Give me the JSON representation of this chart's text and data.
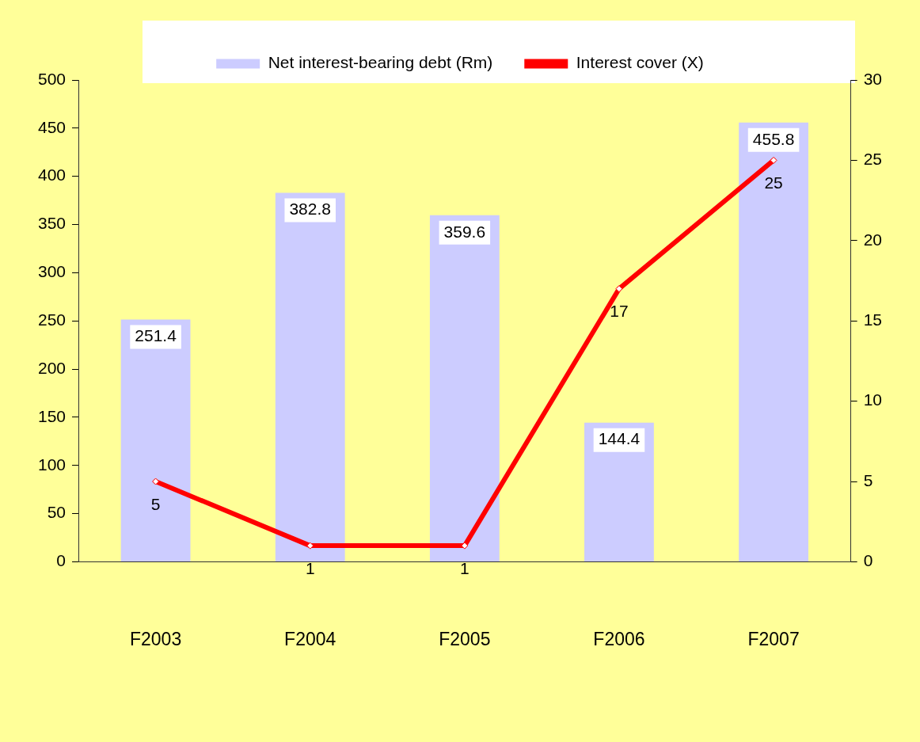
{
  "chart_data": {
    "type": "bar",
    "categories": [
      "F2003",
      "F2004",
      "F2005",
      "F2006",
      "F2007"
    ],
    "series": [
      {
        "name": "Net interest-bearing debt (Rm)",
        "color": "#ccccff",
        "values": [
          251.4,
          382.8,
          359.6,
          144.4,
          455.8
        ]
      },
      {
        "name": "Interest cover (X)",
        "type": "line",
        "axis": "y2",
        "color": "#ff0000",
        "marker": "diamond",
        "values": [
          5,
          1,
          1,
          17,
          25
        ]
      }
    ],
    "ylim": [
      0,
      500
    ],
    "yticks": [
      0,
      50,
      100,
      150,
      200,
      250,
      300,
      350,
      400,
      450,
      500
    ],
    "y2lim": [
      0,
      30
    ],
    "y2ticks": [
      0,
      5,
      10,
      15,
      20,
      25,
      30
    ],
    "data_labels": true,
    "legend": "top",
    "grid": false
  }
}
